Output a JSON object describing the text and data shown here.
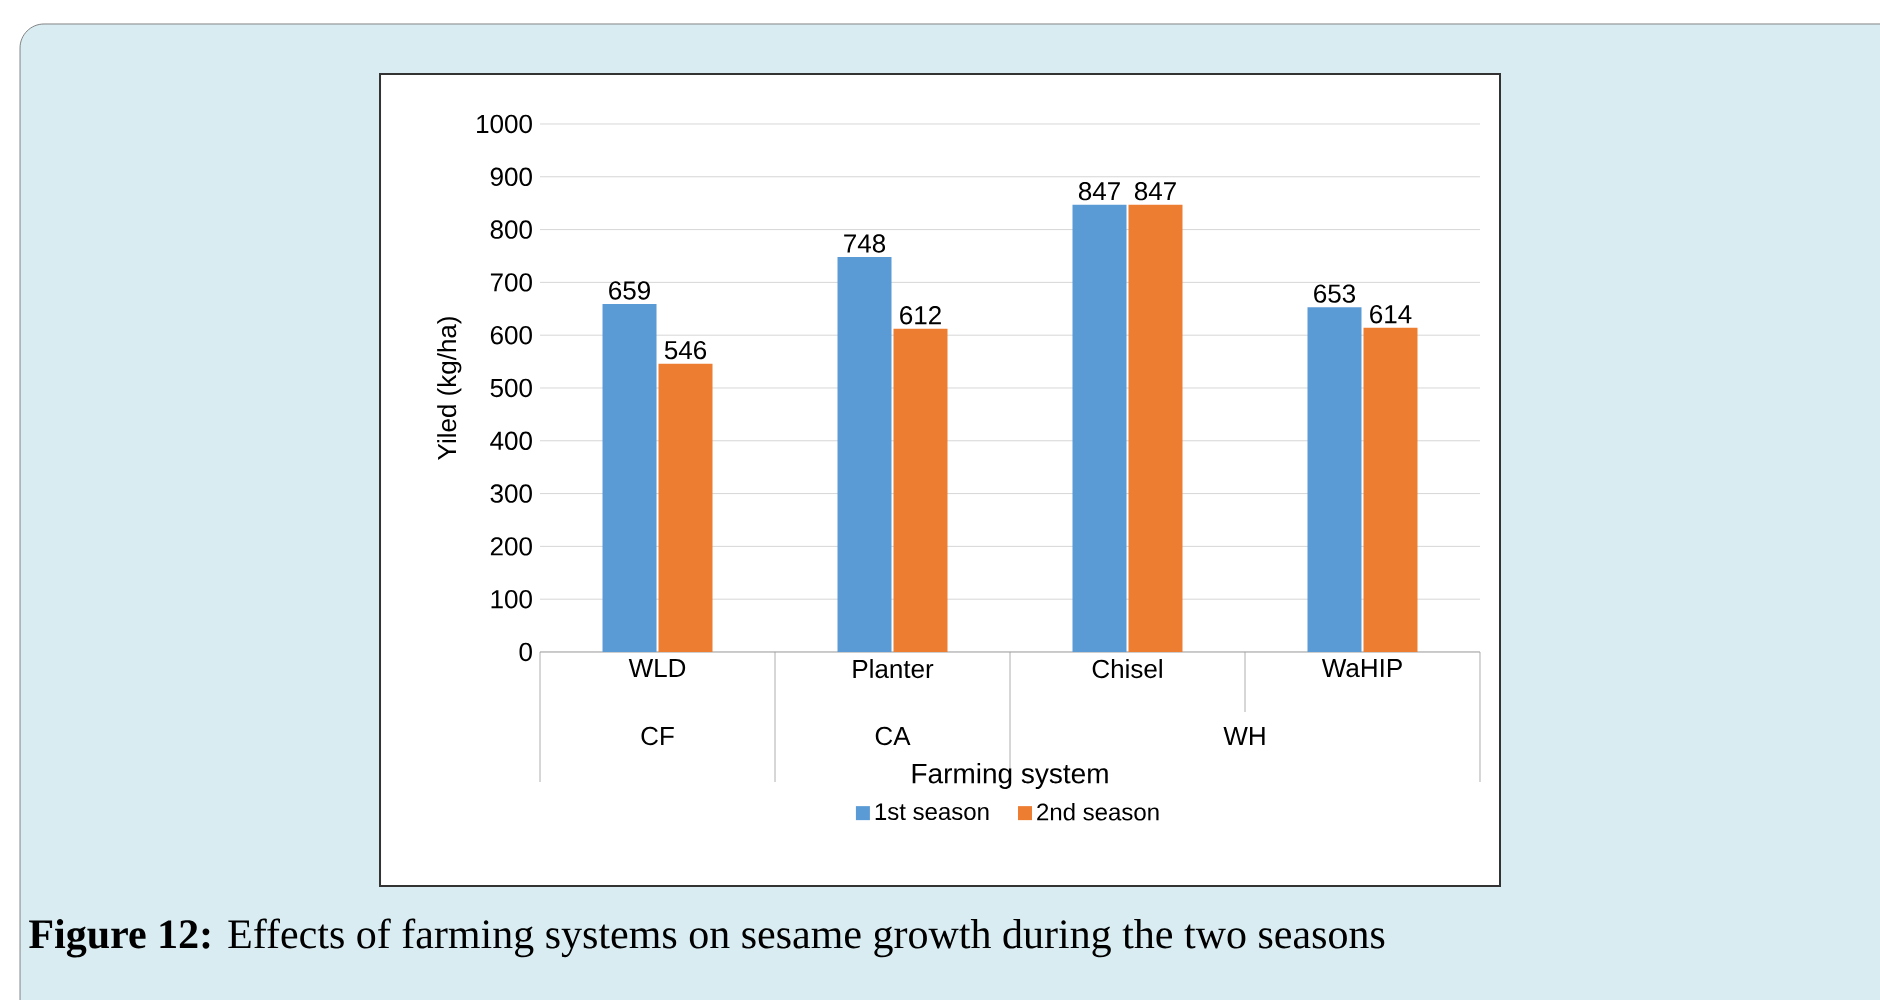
{
  "chart_data": {
    "type": "bar",
    "categories": [
      "WLD",
      "Planter",
      "Chisel",
      "WaHIP"
    ],
    "series": [
      {
        "name": "1st season",
        "color": "#5b9bd5",
        "values": [
          659,
          748,
          847,
          653
        ]
      },
      {
        "name": "2nd season",
        "color": "#ed7d31",
        "values": [
          546,
          612,
          847,
          614
        ]
      }
    ],
    "ylabel": "Yiled (kg/ha)",
    "xlabel": "Farming system",
    "ylim": [
      0,
      1000
    ],
    "yticks": [
      0,
      100,
      200,
      300,
      400,
      500,
      600,
      700,
      800,
      900,
      1000
    ],
    "grid": "y",
    "legend": "bottom",
    "data_labels": true,
    "annotations": [
      "CF",
      "CA",
      "WH",
      "**Figure 12:** Effects of farming systems on sesame growth during the two seasons"
    ]
  }
}
